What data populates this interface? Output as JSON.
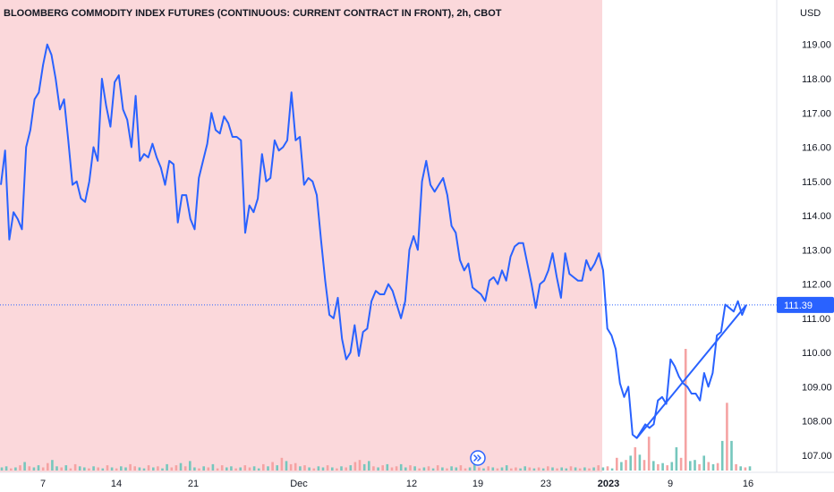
{
  "chart_data": {
    "type": "line",
    "title": "BLOOMBERG COMMODITY INDEX FUTURES (CONTINUOUS: CURRENT CONTRACT IN FRONT), 2h, CBOT",
    "currency_label": "USD",
    "x_tick_labels": [
      "7",
      "14",
      "21",
      "Dec",
      "12",
      "19",
      "23",
      "2023",
      "9",
      "16"
    ],
    "y_tick_labels": [
      "107.00",
      "108.00",
      "109.00",
      "110.00",
      "111.00",
      "112.00",
      "113.00",
      "114.00",
      "115.00",
      "116.00",
      "117.00",
      "118.00",
      "119.00"
    ],
    "ylim": [
      106.5,
      120.3
    ],
    "last_price": "111.39",
    "last_price_value": 111.39,
    "highlight_region": "before 2023 (pink shading)",
    "series": [
      {
        "values": [
          114.9,
          115.9,
          113.3,
          114.1,
          113.9,
          113.6,
          116.0,
          116.5,
          117.4,
          117.6,
          118.4,
          119.0,
          118.7,
          118.0,
          117.1,
          117.4,
          116.2,
          114.9,
          115.0,
          114.5,
          114.4,
          115.0,
          116.0,
          115.6,
          118.0,
          117.2,
          116.6,
          117.9,
          118.1,
          117.1,
          116.8,
          116.0,
          117.5,
          115.6,
          115.8,
          115.7,
          116.1,
          115.7,
          115.4,
          114.9,
          115.6,
          115.5,
          113.8,
          114.6,
          114.6,
          113.9,
          113.6,
          115.1,
          115.6,
          116.1,
          117.0,
          116.5,
          116.4,
          116.9,
          116.7,
          116.3,
          116.3,
          116.2,
          113.5,
          114.3,
          114.1,
          114.5,
          115.8,
          115.0,
          115.1,
          116.2,
          115.9,
          116.0,
          116.2,
          117.6,
          116.2,
          116.3,
          114.9,
          115.1,
          115.0,
          114.6,
          113.3,
          112.1,
          111.1,
          111.0,
          111.6,
          110.4,
          109.8,
          110.0,
          110.8,
          109.9,
          110.6,
          110.7,
          111.5,
          111.8,
          111.7,
          111.7,
          112.0,
          111.8,
          111.4,
          111.0,
          111.5,
          113.0,
          113.4,
          113.0,
          115.0,
          115.6,
          114.9,
          114.7,
          114.9,
          115.1,
          114.6,
          113.7,
          113.5,
          112.7,
          112.4,
          112.6,
          111.9,
          111.8,
          111.7,
          111.5,
          112.1,
          112.2,
          112.0,
          112.4,
          112.1,
          112.8,
          113.1,
          113.2,
          113.2,
          112.6,
          112.0,
          111.3,
          112.0,
          112.1,
          112.4,
          112.9,
          112.2,
          111.6,
          112.9,
          112.3,
          112.2,
          112.1,
          112.1,
          112.7,
          112.4,
          112.6,
          112.9,
          112.4,
          110.7,
          110.5,
          110.1,
          109.1,
          108.7,
          109.0,
          107.6,
          107.5,
          107.7,
          107.9,
          107.8,
          107.9,
          108.6,
          108.7,
          108.5,
          109.8,
          109.6,
          109.3,
          109.1,
          109.0,
          108.8,
          108.8,
          108.6,
          109.4,
          109.0,
          109.4,
          110.5,
          110.6,
          111.4,
          111.3,
          111.2,
          111.5,
          111.1,
          111.39
        ],
        "color": "#2962ff"
      }
    ],
    "trendline": {
      "from": 107.5,
      "to": 111.39,
      "color": "#2962ff"
    },
    "volume": [
      {
        "v": 0.3,
        "c": "g"
      },
      {
        "v": 0.4,
        "c": "g"
      },
      {
        "v": 0.2,
        "c": "r"
      },
      {
        "v": 0.3,
        "c": "g"
      },
      {
        "v": 0.5,
        "c": "r"
      },
      {
        "v": 0.8,
        "c": "g"
      },
      {
        "v": 0.4,
        "c": "r"
      },
      {
        "v": 0.3,
        "c": "g"
      },
      {
        "v": 0.5,
        "c": "g"
      },
      {
        "v": 0.3,
        "c": "r"
      },
      {
        "v": 0.7,
        "c": "r"
      },
      {
        "v": 1.0,
        "c": "g"
      },
      {
        "v": 0.4,
        "c": "g"
      },
      {
        "v": 0.3,
        "c": "r"
      },
      {
        "v": 0.5,
        "c": "g"
      },
      {
        "v": 0.2,
        "c": "r"
      },
      {
        "v": 0.6,
        "c": "r"
      },
      {
        "v": 0.4,
        "c": "g"
      },
      {
        "v": 0.3,
        "c": "g"
      },
      {
        "v": 0.2,
        "c": "r"
      },
      {
        "v": 0.4,
        "c": "g"
      },
      {
        "v": 0.3,
        "c": "r"
      },
      {
        "v": 0.2,
        "c": "g"
      },
      {
        "v": 0.5,
        "c": "r"
      },
      {
        "v": 0.3,
        "c": "g"
      },
      {
        "v": 0.2,
        "c": "r"
      },
      {
        "v": 0.4,
        "c": "g"
      },
      {
        "v": 0.3,
        "c": "g"
      },
      {
        "v": 0.6,
        "c": "r"
      },
      {
        "v": 0.4,
        "c": "r"
      },
      {
        "v": 0.3,
        "c": "g"
      },
      {
        "v": 0.2,
        "c": "g"
      },
      {
        "v": 0.5,
        "c": "r"
      },
      {
        "v": 0.3,
        "c": "g"
      },
      {
        "v": 0.4,
        "c": "r"
      },
      {
        "v": 0.2,
        "c": "g"
      },
      {
        "v": 0.6,
        "c": "g"
      },
      {
        "v": 0.3,
        "c": "r"
      },
      {
        "v": 0.5,
        "c": "r"
      },
      {
        "v": 0.7,
        "c": "g"
      },
      {
        "v": 0.4,
        "c": "r"
      },
      {
        "v": 0.9,
        "c": "g"
      },
      {
        "v": 0.3,
        "c": "g"
      },
      {
        "v": 0.2,
        "c": "r"
      },
      {
        "v": 0.4,
        "c": "g"
      },
      {
        "v": 0.3,
        "c": "r"
      },
      {
        "v": 0.6,
        "c": "g"
      },
      {
        "v": 0.2,
        "c": "r"
      },
      {
        "v": 0.5,
        "c": "r"
      },
      {
        "v": 0.3,
        "c": "g"
      },
      {
        "v": 0.4,
        "c": "g"
      },
      {
        "v": 0.2,
        "c": "r"
      },
      {
        "v": 0.3,
        "c": "g"
      },
      {
        "v": 0.5,
        "c": "r"
      },
      {
        "v": 0.3,
        "c": "r"
      },
      {
        "v": 0.4,
        "c": "g"
      },
      {
        "v": 0.2,
        "c": "g"
      },
      {
        "v": 0.6,
        "c": "r"
      },
      {
        "v": 0.4,
        "c": "g"
      },
      {
        "v": 0.8,
        "c": "r"
      },
      {
        "v": 0.5,
        "c": "g"
      },
      {
        "v": 1.2,
        "c": "r"
      },
      {
        "v": 0.9,
        "c": "g"
      },
      {
        "v": 0.6,
        "c": "r"
      },
      {
        "v": 0.7,
        "c": "r"
      },
      {
        "v": 0.4,
        "c": "g"
      },
      {
        "v": 0.5,
        "c": "r"
      },
      {
        "v": 0.3,
        "c": "g"
      },
      {
        "v": 0.2,
        "c": "r"
      },
      {
        "v": 0.4,
        "c": "g"
      },
      {
        "v": 0.3,
        "c": "g"
      },
      {
        "v": 0.5,
        "c": "r"
      },
      {
        "v": 0.3,
        "c": "g"
      },
      {
        "v": 0.2,
        "c": "r"
      },
      {
        "v": 0.4,
        "c": "g"
      },
      {
        "v": 0.3,
        "c": "r"
      },
      {
        "v": 0.5,
        "c": "g"
      },
      {
        "v": 0.8,
        "c": "r"
      },
      {
        "v": 1.0,
        "c": "r"
      },
      {
        "v": 0.6,
        "c": "g"
      },
      {
        "v": 0.9,
        "c": "g"
      },
      {
        "v": 0.4,
        "c": "r"
      },
      {
        "v": 0.3,
        "c": "g"
      },
      {
        "v": 0.5,
        "c": "r"
      },
      {
        "v": 0.6,
        "c": "g"
      },
      {
        "v": 0.3,
        "c": "r"
      },
      {
        "v": 0.4,
        "c": "r"
      },
      {
        "v": 0.6,
        "c": "g"
      },
      {
        "v": 0.3,
        "c": "g"
      },
      {
        "v": 0.5,
        "c": "r"
      },
      {
        "v": 0.4,
        "c": "g"
      },
      {
        "v": 0.2,
        "c": "r"
      },
      {
        "v": 0.3,
        "c": "g"
      },
      {
        "v": 0.4,
        "c": "r"
      },
      {
        "v": 0.2,
        "c": "g"
      },
      {
        "v": 0.5,
        "c": "r"
      },
      {
        "v": 0.3,
        "c": "g"
      },
      {
        "v": 0.2,
        "c": "r"
      },
      {
        "v": 0.4,
        "c": "g"
      },
      {
        "v": 0.3,
        "c": "g"
      },
      {
        "v": 0.5,
        "c": "r"
      },
      {
        "v": 0.2,
        "c": "r"
      },
      {
        "v": 0.3,
        "c": "g"
      },
      {
        "v": 0.6,
        "c": "g"
      },
      {
        "v": 0.3,
        "c": "r"
      },
      {
        "v": 0.2,
        "c": "g"
      },
      {
        "v": 0.4,
        "c": "r"
      },
      {
        "v": 0.3,
        "c": "g"
      },
      {
        "v": 0.2,
        "c": "r"
      },
      {
        "v": 0.3,
        "c": "g"
      },
      {
        "v": 0.5,
        "c": "g"
      },
      {
        "v": 0.2,
        "c": "r"
      },
      {
        "v": 0.3,
        "c": "r"
      },
      {
        "v": 0.2,
        "c": "g"
      },
      {
        "v": 0.4,
        "c": "g"
      },
      {
        "v": 0.3,
        "c": "r"
      },
      {
        "v": 0.2,
        "c": "g"
      },
      {
        "v": 0.3,
        "c": "r"
      },
      {
        "v": 0.2,
        "c": "g"
      },
      {
        "v": 0.4,
        "c": "r"
      },
      {
        "v": 0.3,
        "c": "g"
      },
      {
        "v": 0.2,
        "c": "r"
      },
      {
        "v": 0.3,
        "c": "g"
      },
      {
        "v": 0.2,
        "c": "g"
      },
      {
        "v": 0.4,
        "c": "r"
      },
      {
        "v": 0.3,
        "c": "g"
      },
      {
        "v": 0.2,
        "c": "r"
      },
      {
        "v": 0.3,
        "c": "g"
      },
      {
        "v": 0.2,
        "c": "r"
      },
      {
        "v": 0.3,
        "c": "g"
      },
      {
        "v": 0.5,
        "c": "r"
      },
      {
        "v": 0.3,
        "c": "g"
      },
      {
        "v": 0.4,
        "c": "r"
      },
      {
        "v": 0.2,
        "c": "g"
      },
      {
        "v": 1.2,
        "c": "r"
      },
      {
        "v": 0.8,
        "c": "g"
      },
      {
        "v": 1.0,
        "c": "r"
      },
      {
        "v": 1.4,
        "c": "g"
      },
      {
        "v": 2.2,
        "c": "r"
      },
      {
        "v": 1.5,
        "c": "g"
      },
      {
        "v": 1.0,
        "c": "r"
      },
      {
        "v": 3.2,
        "c": "r"
      },
      {
        "v": 0.9,
        "c": "g"
      },
      {
        "v": 0.6,
        "c": "r"
      },
      {
        "v": 0.7,
        "c": "g"
      },
      {
        "v": 0.5,
        "c": "r"
      },
      {
        "v": 0.8,
        "c": "g"
      },
      {
        "v": 2.2,
        "c": "g"
      },
      {
        "v": 1.2,
        "c": "r"
      },
      {
        "v": 11.5,
        "c": "r"
      },
      {
        "v": 0.9,
        "c": "g"
      },
      {
        "v": 1.0,
        "c": "g"
      },
      {
        "v": 0.6,
        "c": "r"
      },
      {
        "v": 1.4,
        "c": "g"
      },
      {
        "v": 0.8,
        "c": "r"
      },
      {
        "v": 0.6,
        "c": "g"
      },
      {
        "v": 0.7,
        "c": "r"
      },
      {
        "v": 2.8,
        "c": "g"
      },
      {
        "v": 6.4,
        "c": "r"
      },
      {
        "v": 2.8,
        "c": "g"
      },
      {
        "v": 0.6,
        "c": "r"
      },
      {
        "v": 0.4,
        "c": "g"
      },
      {
        "v": 0.3,
        "c": "r"
      },
      {
        "v": 0.4,
        "c": "g"
      }
    ]
  },
  "colors": {
    "line": "#2962ff",
    "shade": "#fbd8db",
    "price_tag": "#2962ff",
    "vol_up": "#76c7bd",
    "vol_down": "#f5a3a3"
  },
  "icons": {
    "goto_realtime": "arrow-right-icon"
  }
}
